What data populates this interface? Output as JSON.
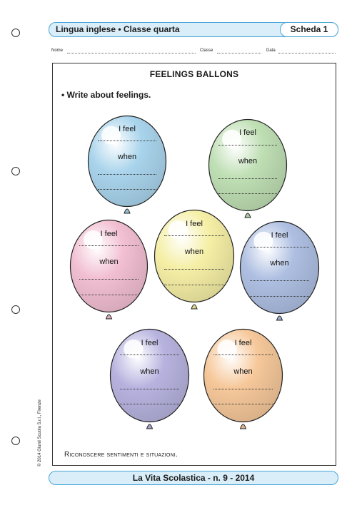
{
  "header": {
    "subject": "Lingua inglese • Classe quarta",
    "sheet": "Scheda 1"
  },
  "fields": {
    "nome": "Nome",
    "classe": "Classe",
    "data": "Data"
  },
  "worksheet": {
    "title": "FEELINGS BALLONS",
    "instruction": "• Write about feelings.",
    "footer": "Riconoscere sentimenti e situazioni."
  },
  "balloons": [
    {
      "color": "#a9d4ec",
      "line1": "I feel",
      "line2": "when"
    },
    {
      "color": "#bfdfb4",
      "line1": "I feel",
      "line2": "when"
    },
    {
      "color": "#f2bfd2",
      "line1": "I feel",
      "line2": "when"
    },
    {
      "color": "#f5efa6",
      "line1": "I feel",
      "line2": "when"
    },
    {
      "color": "#aebfe2",
      "line1": "I feel",
      "line2": "when"
    },
    {
      "color": "#b7b3df",
      "line1": "I feel",
      "line2": "when"
    },
    {
      "color": "#f6c89a",
      "line1": "I feel",
      "line2": "when"
    }
  ],
  "copyright": "© 2014 Giunti Scuola S.r.l., Firenze",
  "bottom": {
    "publication": "La Vita Scolastica - n. 9 - 2014"
  }
}
